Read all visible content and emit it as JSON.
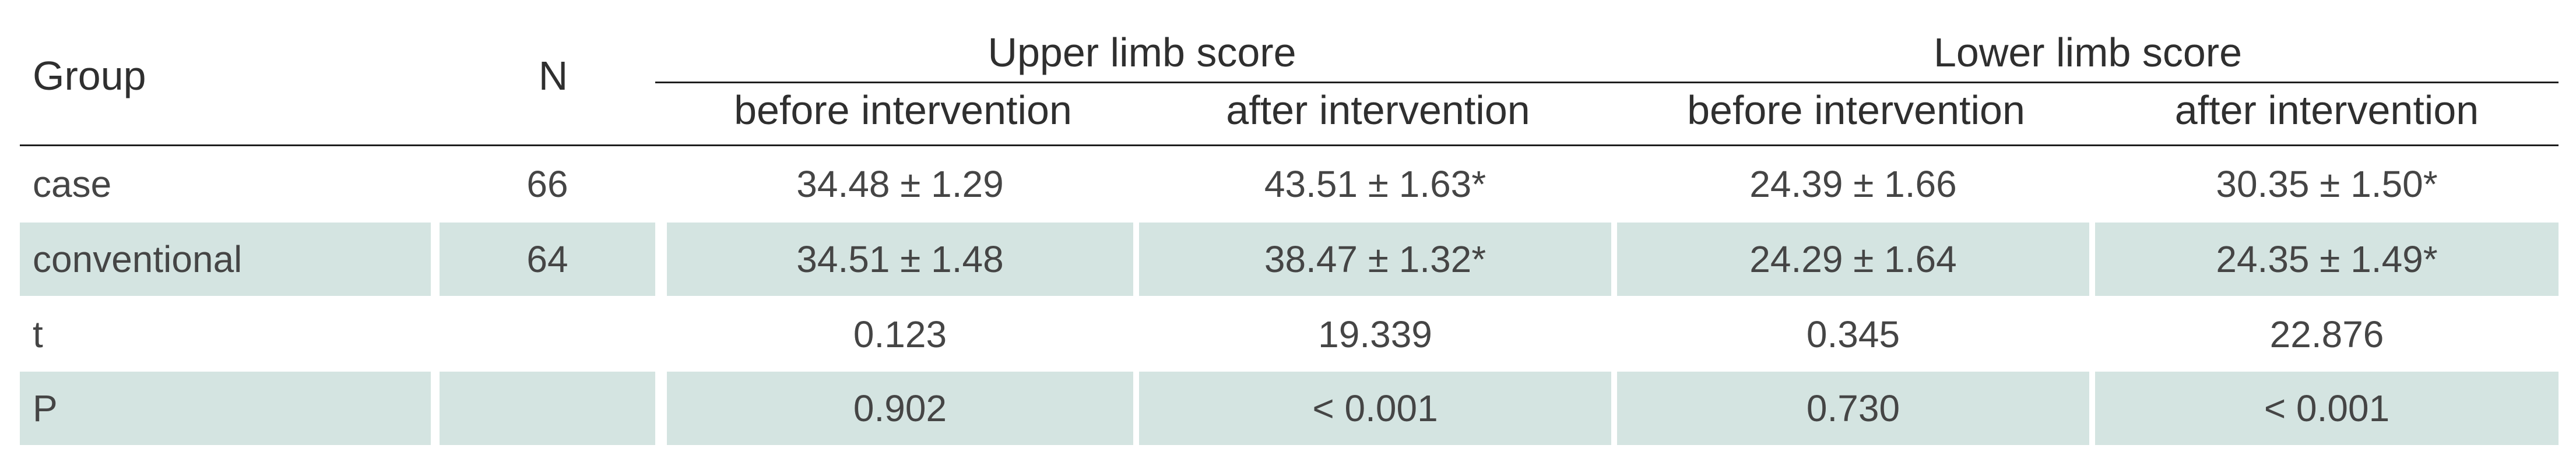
{
  "table": {
    "header": {
      "group": "Group",
      "n": "N",
      "upper_limb": "Upper limb score",
      "lower_limb": "Lower limb score",
      "upper_before": "before intervention",
      "upper_after": "after intervention",
      "lower_before": "before intervention",
      "lower_after": "after intervention"
    },
    "rows": [
      {
        "group": "case",
        "n": "66",
        "upper_before": "34.48 ± 1.29",
        "upper_after": "43.51 ± 1.63*",
        "lower_before": "24.39 ± 1.66",
        "lower_after": "30.35 ± 1.50*"
      },
      {
        "group": "conventional",
        "n": "64",
        "upper_before": "34.51 ± 1.48",
        "upper_after": "38.47 ± 1.32*",
        "lower_before": "24.29 ± 1.64",
        "lower_after": "24.35 ± 1.49*"
      },
      {
        "group": "t",
        "n": "",
        "upper_before": "0.123",
        "upper_after": "19.339",
        "lower_before": "0.345",
        "lower_after": "22.876"
      },
      {
        "group": "P",
        "n": "",
        "upper_before": "0.902",
        "upper_after": "< 0.001",
        "lower_before": "0.730",
        "lower_after": "< 0.001"
      }
    ],
    "colors": {
      "shaded_row": "#d4e4e1",
      "rule": "#1e1e1e",
      "text": "#3a3a3a"
    }
  }
}
